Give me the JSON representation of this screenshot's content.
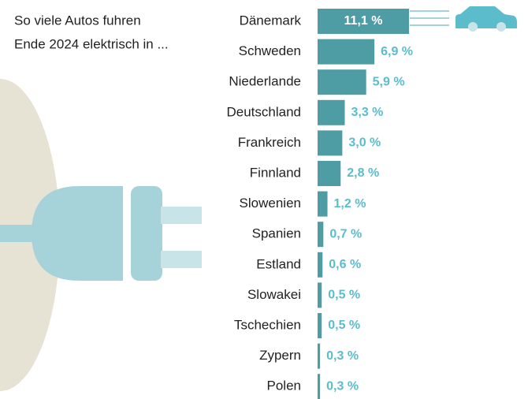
{
  "chart_data": {
    "type": "bar",
    "orientation": "horizontal",
    "title": [
      "So viele Autos fuhren",
      "Ende 2024 elektrisch in ..."
    ],
    "categories": [
      "Dänemark",
      "Schweden",
      "Niederlande",
      "Deutschland",
      "Frankreich",
      "Finnland",
      "Slowenien",
      "Spanien",
      "Estland",
      "Slowakei",
      "Tschechien",
      "Zypern",
      "Polen"
    ],
    "values": [
      11.1,
      6.9,
      5.9,
      3.3,
      3.0,
      2.8,
      1.2,
      0.7,
      0.6,
      0.5,
      0.5,
      0.3,
      0.3
    ],
    "value_labels": [
      "11,1 %",
      "6,9 %",
      "5,9 %",
      "3,3 %",
      "3,0 %",
      "2,8 %",
      "1,2 %",
      "0,7 %",
      "0,6 %",
      "0,5 %",
      "0,5 %",
      "0,3 %",
      "0,3 %"
    ],
    "color": "#4e9ca4",
    "label_color": "#5bbdcc"
  }
}
